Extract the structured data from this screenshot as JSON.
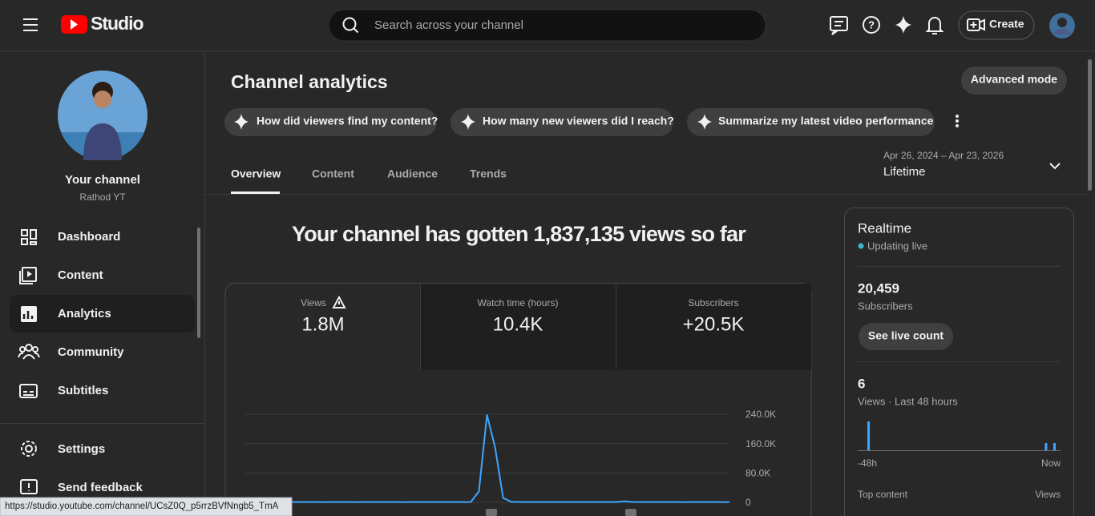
{
  "header": {
    "logo": "Studio",
    "search_placeholder": "Search across your channel",
    "create": "Create"
  },
  "sidebar": {
    "channel_title": "Your channel",
    "channel_name": "Rathod YT",
    "nav": [
      "Dashboard",
      "Content",
      "Analytics",
      "Community",
      "Subtitles"
    ],
    "footer_nav": [
      "Settings",
      "Send feedback"
    ]
  },
  "page": {
    "title": "Channel analytics",
    "advanced_mode": "Advanced mode",
    "suggestions": [
      "How did viewers find my content?",
      "How many new viewers did I reach?",
      "Summarize my latest video performance"
    ],
    "date_range": "Apr 26, 2024 – Apr 23, 2026",
    "period": "Lifetime",
    "tabs": [
      "Overview",
      "Content",
      "Audience",
      "Trends"
    ],
    "headline": "Your channel has gotten 1,837,135 views so far"
  },
  "metrics": [
    {
      "label": "Views",
      "value": "1.8M"
    },
    {
      "label": "Watch time (hours)",
      "value": "10.4K"
    },
    {
      "label": "Subscribers",
      "value": "+20.5K"
    }
  ],
  "chart_data": {
    "type": "line",
    "ylim": [
      0,
      240000
    ],
    "yticks": [
      {
        "value": 240000,
        "label": "240.0K"
      },
      {
        "value": 160000,
        "label": "160.0K"
      },
      {
        "value": 80000,
        "label": "80.0K"
      },
      0
    ],
    "grid": true,
    "series": [
      {
        "color": "#3ea6ff",
        "values": [
          800,
          900,
          700,
          1000,
          900,
          800,
          1100,
          900,
          1000,
          800,
          900,
          1000,
          1200,
          900,
          800,
          1000,
          900,
          1100,
          1000,
          900,
          800,
          1000,
          1100,
          900,
          1000,
          1200,
          1000,
          900,
          1100,
          30000,
          238000,
          150000,
          12000,
          1500,
          1200,
          1000,
          900,
          1100,
          1000,
          900,
          1000,
          1200,
          1000,
          900,
          1100,
          1000,
          900,
          3000,
          1000,
          900,
          1000,
          900,
          1100,
          1000,
          900,
          800,
          1000,
          900,
          1000,
          900,
          800
        ]
      }
    ]
  },
  "realtime": {
    "title": "Realtime",
    "status": "Updating live",
    "subscribers": "20,459",
    "subscribers_label": "Subscribers",
    "see_live_count": "See live count",
    "views": "6",
    "views_label": "Views · Last 48 hours",
    "chart": {
      "type": "bar",
      "color": "#3ea6ff",
      "ylim": [
        0,
        4
      ],
      "values": [
        0,
        0,
        4,
        0,
        0,
        0,
        0,
        0,
        0,
        0,
        0,
        0,
        0,
        0,
        0,
        0,
        0,
        0,
        0,
        0,
        0,
        0,
        0,
        0,
        0,
        0,
        0,
        0,
        0,
        0,
        0,
        0,
        0,
        0,
        0,
        0,
        0,
        0,
        0,
        0,
        0,
        0,
        0,
        0,
        1,
        0,
        1,
        0
      ]
    },
    "start_label": "-48h",
    "end_label": "Now",
    "top_content": "Top content",
    "views_column": "Views"
  },
  "status_bar": "https://studio.youtube.com/channel/UCsZ0Q_p5rrzBVfNngb5_TmA"
}
